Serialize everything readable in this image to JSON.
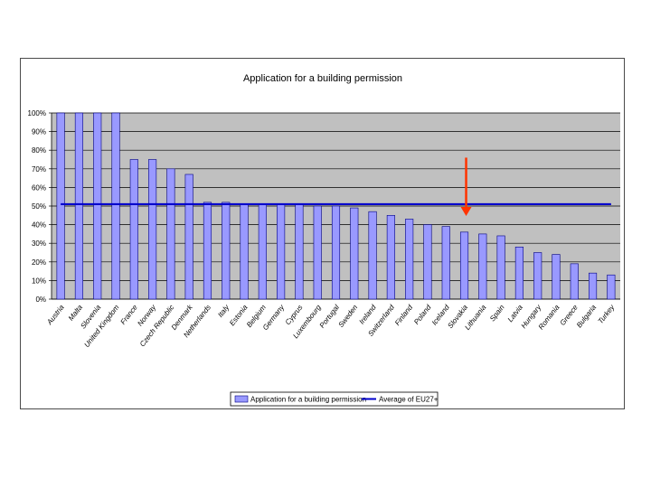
{
  "chart_data": {
    "type": "bar",
    "title": "Application for a building permission",
    "categories": [
      "Austria",
      "Malta",
      "Slovenia",
      "United Kingdom",
      "France",
      "Norway",
      "Czech Republic",
      "Denmark",
      "Netherlands",
      "Italy",
      "Estonia",
      "Belgium",
      "Germany",
      "Cyprus",
      "Luxembourg",
      "Portugal",
      "Sweden",
      "Ireland",
      "Switzerland",
      "Finland",
      "Poland",
      "Iceland",
      "Slovakia",
      "Lithuania",
      "Spain",
      "Latvia",
      "Hungary",
      "Romania",
      "Greece",
      "Bulgaria",
      "Turkey"
    ],
    "series": [
      {
        "name": "Application for a building permission",
        "values": [
          100,
          100,
          100,
          100,
          75,
          75,
          70,
          67,
          52,
          52,
          51,
          51,
          51,
          51,
          50,
          50,
          49,
          47,
          45,
          43,
          40,
          39,
          36,
          35,
          34,
          28,
          25,
          24,
          19,
          14,
          13
        ],
        "color": "#9999ff"
      }
    ],
    "reference_line": {
      "name": "Average of EU27+",
      "value": 51,
      "color": "#0000cc"
    },
    "yticks": [
      "0%",
      "10%",
      "20%",
      "30%",
      "40%",
      "50%",
      "60%",
      "70%",
      "80%",
      "90%",
      "100%"
    ],
    "ylim": [
      0,
      100
    ],
    "grid": true,
    "plot_background": "#c0c0c0",
    "legend_position": "bottom",
    "annotation": {
      "type": "arrow",
      "color": "#ff3300",
      "points_to": "Slovakia",
      "direction": "down"
    }
  }
}
